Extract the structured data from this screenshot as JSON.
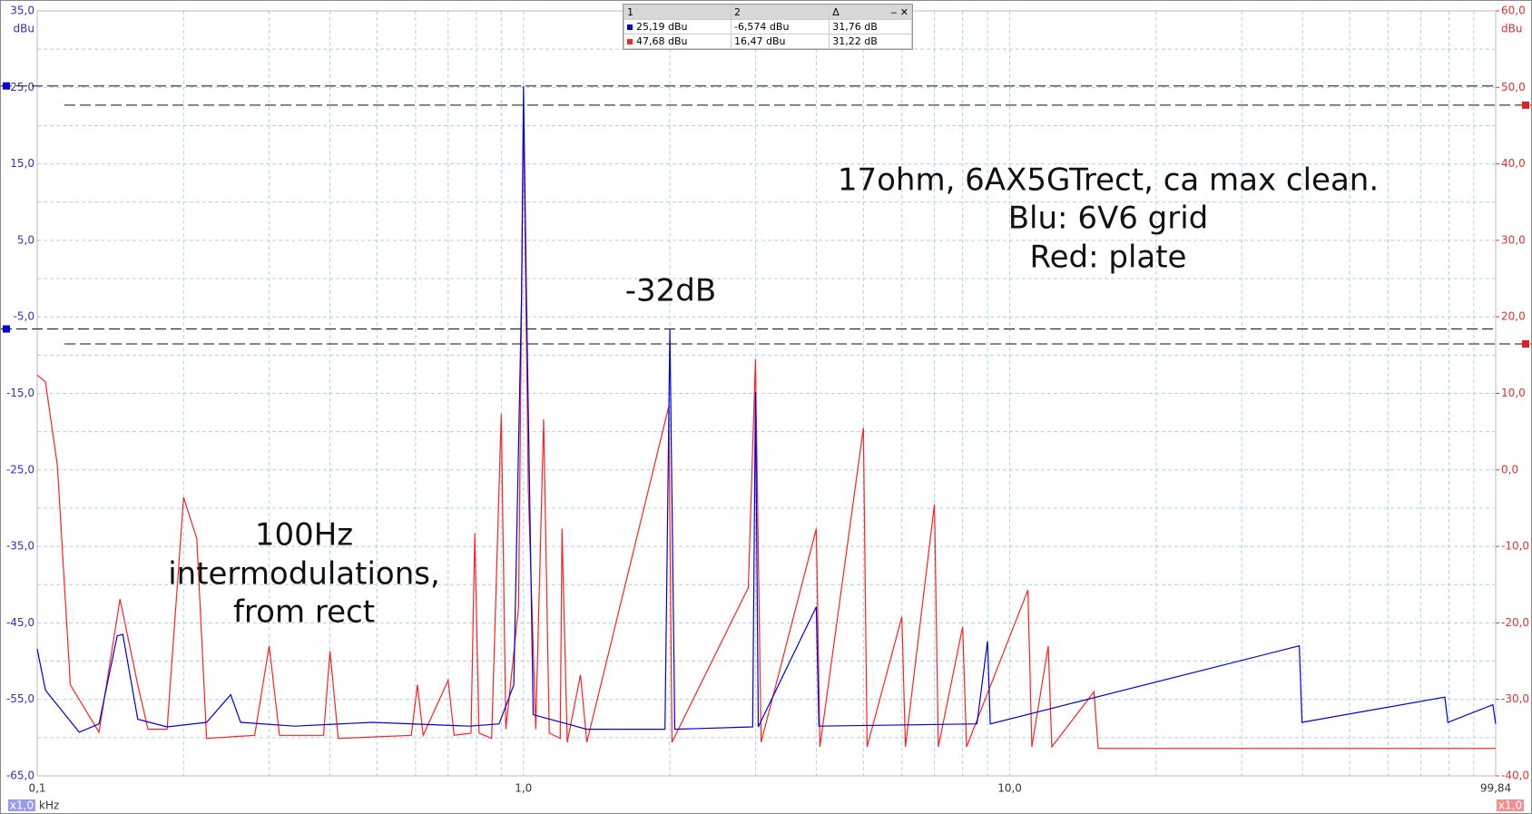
{
  "chart_data": {
    "type": "line",
    "log_x": true,
    "grid": true,
    "y_unit": "dBu",
    "y2_unit": "dBu",
    "x_unit": "kHz",
    "x_zoom": "x1,0",
    "y2_zoom": "x1,0",
    "xlim": [
      0.1,
      99.84
    ],
    "xticks": [
      {
        "value": 0.1,
        "label": "0,1"
      },
      {
        "value": 1,
        "label": "1,0"
      },
      {
        "value": 10,
        "label": "10,0"
      },
      {
        "value": 99.84,
        "label": "99,84"
      }
    ],
    "xticks_minor": [
      0.2,
      0.3,
      0.4,
      0.5,
      0.6,
      0.7,
      0.8,
      0.9,
      2,
      3,
      4,
      5,
      6,
      7,
      8,
      9,
      20,
      30,
      40,
      50,
      60,
      70,
      80,
      90
    ],
    "ylim": [
      -65,
      35
    ],
    "yticks": [
      {
        "value": 35,
        "label": "35,0"
      },
      {
        "value": 25,
        "label": "25,0"
      },
      {
        "value": 15,
        "label": "15,0"
      },
      {
        "value": 5,
        "label": "5,0"
      },
      {
        "value": -5,
        "label": "-5,0"
      },
      {
        "value": -15,
        "label": "-15,0"
      },
      {
        "value": -25,
        "label": "-25,0"
      },
      {
        "value": -35,
        "label": "-35,0"
      },
      {
        "value": -45,
        "label": "-45,0"
      },
      {
        "value": -55,
        "label": "-55,0"
      },
      {
        "value": -65,
        "label": "-65,0"
      }
    ],
    "yticks_minor": [
      30,
      20,
      10,
      0,
      -10,
      -20,
      -30,
      -40,
      -50,
      -60
    ],
    "y2lim": [
      -40,
      60
    ],
    "y2ticks": [
      {
        "value": 60,
        "label": "60,0"
      },
      {
        "value": 50,
        "label": "50,0"
      },
      {
        "value": 40,
        "label": "40,0"
      },
      {
        "value": 30,
        "label": "30,0"
      },
      {
        "value": 20,
        "label": "20,0"
      },
      {
        "value": 10,
        "label": "10,0"
      },
      {
        "value": 0,
        "label": "0,0"
      },
      {
        "value": -10,
        "label": "-10,0"
      },
      {
        "value": -20,
        "label": "-20,0"
      },
      {
        "value": -30,
        "label": "-30,0"
      },
      {
        "value": -40,
        "label": "-40,0"
      }
    ],
    "cursors": {
      "y": [
        25.19,
        -6.574
      ],
      "y2": [
        47.68,
        16.47
      ]
    },
    "series": [
      {
        "name": "Blu",
        "color": "#0000e0",
        "axis": "y",
        "x": [
          0.1,
          0.104,
          0.122,
          0.134,
          0.146,
          0.15,
          0.161,
          0.185,
          0.223,
          0.25,
          0.262,
          0.338,
          0.489,
          0.776,
          0.891,
          0.955,
          0.991,
          1.0,
          1.014,
          1.047,
          1.35,
          1.954,
          2.0,
          2.047,
          2.96,
          3.0,
          3.04,
          4.0,
          4.05,
          8.56,
          9.0,
          9.12,
          39.4,
          39.9,
          78.5,
          79.6,
          98.5,
          99.84
        ],
        "values": [
          -48.4,
          -53.8,
          -59.3,
          -58.2,
          -46.7,
          -46.5,
          -57.6,
          -58.6,
          -58.0,
          -54.4,
          -58.0,
          -58.5,
          -58.0,
          -58.5,
          -58.2,
          -53.1,
          -2.0,
          25.19,
          -2.0,
          -57.0,
          -58.9,
          -58.9,
          -6.574,
          -58.9,
          -58.6,
          -14.8,
          -58.6,
          -42.9,
          -58.5,
          -58.2,
          -47.4,
          -58.2,
          -48.0,
          -58.0,
          -54.7,
          -58.0,
          -55.7,
          -58.2
        ]
      },
      {
        "name": "Red",
        "color": "#ff2020",
        "axis": "y2",
        "x": [
          0.1,
          0.104,
          0.11,
          0.117,
          0.134,
          0.148,
          0.161,
          0.169,
          0.185,
          0.2,
          0.213,
          0.223,
          0.28,
          0.3,
          0.315,
          0.388,
          0.4,
          0.416,
          0.588,
          0.605,
          0.622,
          0.7,
          0.72,
          0.78,
          0.794,
          0.81,
          0.86,
          0.9,
          0.92,
          0.977,
          1.0,
          1.023,
          1.06,
          1.1,
          1.13,
          1.19,
          1.2,
          1.23,
          1.31,
          1.35,
          1.99,
          2.02,
          2.9,
          3.0,
          3.08,
          4.0,
          4.07,
          5.0,
          5.09,
          6.0,
          6.1,
          7.0,
          7.13,
          8.0,
          8.15,
          10.9,
          11.1,
          12.0,
          12.2,
          14.9,
          15.2,
          99.84
        ],
        "values": [
          12.4,
          11.5,
          0.6,
          -28.1,
          -34.3,
          -16.9,
          -28.1,
          -33.9,
          -33.9,
          -3.6,
          -9.0,
          -35.1,
          -34.7,
          -23.0,
          -34.7,
          -34.7,
          -23.7,
          -35.1,
          -34.7,
          -28.1,
          -34.7,
          -27.5,
          -34.7,
          -34.4,
          -8.3,
          -34.4,
          -35.1,
          7.3,
          -33.9,
          -17.9,
          47.68,
          -2.6,
          -33.9,
          6.6,
          -34.4,
          -35.1,
          -7.7,
          -35.6,
          -26.8,
          -35.6,
          8.3,
          -35.6,
          -15.4,
          14.5,
          -35.6,
          -7.7,
          -36.2,
          5.5,
          -36.2,
          -19.2,
          -36.2,
          -4.5,
          -36.2,
          -20.5,
          -36.2,
          -15.7,
          -36.2,
          -23.0,
          -36.2,
          -29.0,
          -36.4,
          -36.4
        ]
      }
    ],
    "annotations": [
      "17ohm, 6AX5GTrect, ca max clean.",
      "Blu: 6V6 grid",
      "Red: plate",
      "-32dB",
      "100Hz",
      "intermodulations,",
      "from rect"
    ]
  },
  "cursor_table": {
    "headers": [
      "1",
      "2",
      "Δ"
    ],
    "rows": [
      [
        "25,19 dBu",
        "-6,574 dBu",
        "31,76 dB"
      ],
      [
        "47,68 dBu",
        "16,47 dBu",
        "31,22 dB"
      ]
    ]
  }
}
